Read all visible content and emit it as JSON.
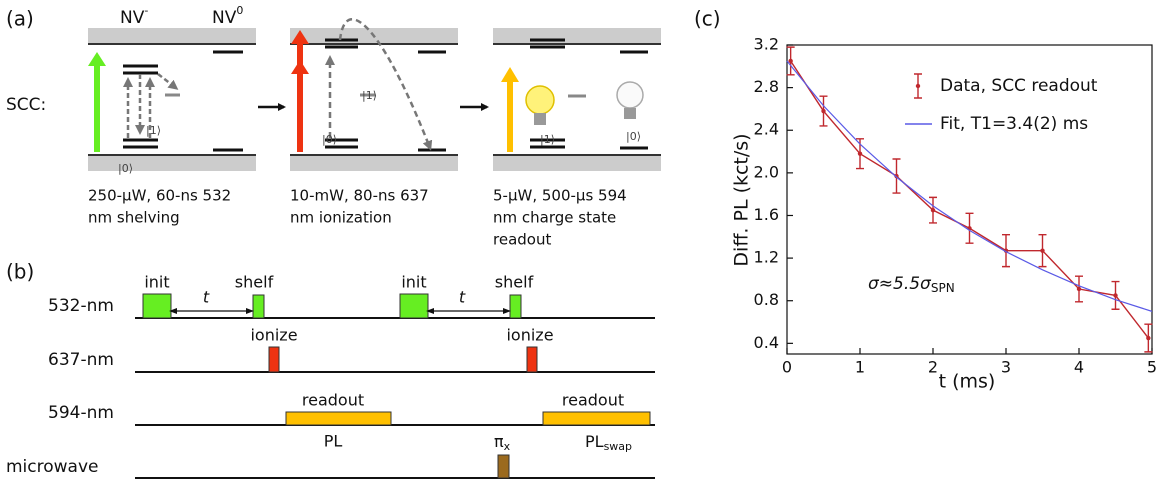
{
  "panel_a": {
    "label": "(a)",
    "states": [
      {
        "base": "NV",
        "sup": "-"
      },
      {
        "base": "NV",
        "sup": "0"
      }
    ],
    "sequence_label": "SCC:",
    "diagrams": [
      {
        "level_labels": [
          "|0⟩",
          "|1⟩"
        ],
        "caption": [
          "250-μW, 60-ns 532",
          "nm shelving"
        ]
      },
      {
        "level_labels": [
          "|0⟩",
          "|1⟩"
        ],
        "caption": [
          "10-mW, 80-ns 637",
          "nm ionization"
        ]
      },
      {
        "level_labels": [
          "|1⟩",
          "|0⟩"
        ],
        "caption": [
          "5-μW, 500-μs 594",
          "nm charge state",
          "readout"
        ]
      }
    ]
  },
  "panel_b": {
    "label": "(b)",
    "channels": [
      "532-nm",
      "637-nm",
      "594-nm",
      "microwave"
    ],
    "pulse_labels": [
      "init",
      "shelf",
      "init",
      "shelf",
      "ionize",
      "ionize",
      "readout",
      "readout"
    ],
    "delay_labels": [
      "t",
      "t"
    ],
    "signal_labels": [
      "PL",
      {
        "main": "PL",
        "sub": "swap"
      }
    ],
    "microwave_label": {
      "main": "π",
      "sub": "x"
    }
  },
  "chart_data": {
    "type": "line",
    "panel_label": "(c)",
    "xlabel": "t (ms)",
    "ylabel": "Diff. PL (kct/s)",
    "xlim": [
      0,
      5
    ],
    "ylim": [
      0.3,
      3.2
    ],
    "xticks": [
      0,
      1,
      2,
      3,
      4,
      5
    ],
    "yticks": [
      0.4,
      0.8,
      1.2,
      1.6,
      {
        "value": 2,
        "label": "2.0"
      },
      2.4,
      2.8,
      3.2
    ],
    "legend": "upper right",
    "series": [
      {
        "name": "Data, SCC readout",
        "color": "#c0282e",
        "style": "errorbar",
        "x": [
          0.05,
          0.5,
          1,
          1.5,
          2,
          2.5,
          3,
          3.5,
          4,
          4.5,
          4.95
        ],
        "values": [
          3.05,
          2.58,
          2.18,
          1.97,
          1.65,
          1.48,
          1.27,
          1.27,
          0.91,
          0.85,
          0.45
        ],
        "errors": [
          0.13,
          0.14,
          0.14,
          0.16,
          0.12,
          0.14,
          0.15,
          0.15,
          0.12,
          0.13,
          0.13
        ]
      },
      {
        "name": "Fit, T1=3.4(2) ms",
        "color": "#5a5ae6",
        "style": "line",
        "x": [
          0,
          0.5,
          1,
          1.5,
          2,
          2.5,
          3,
          3.5,
          4,
          4.5,
          5
        ],
        "values": [
          3.05,
          2.63,
          2.27,
          1.96,
          1.69,
          1.46,
          1.26,
          1.09,
          0.94,
          0.81,
          0.7
        ]
      }
    ],
    "annotation": {
      "main": "σ≈5.5σ",
      "sub": "SPN"
    }
  }
}
